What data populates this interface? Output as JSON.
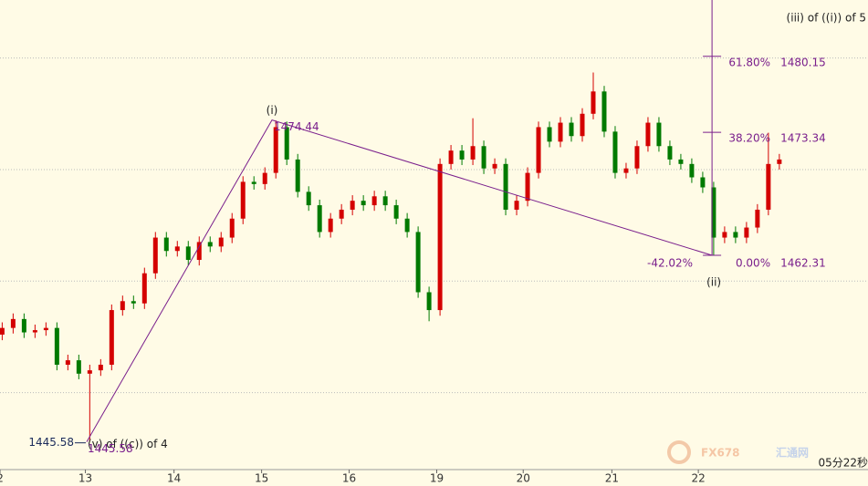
{
  "chart_data": {
    "type": "candlestick",
    "open": [
      1455.2,
      1455.8,
      1456.6,
      1455.4,
      1455.6,
      1455.8,
      1452.5,
      1452.9,
      1451.7,
      1452.0,
      1452.5,
      1457.4,
      1458.2,
      1458.0,
      1460.7,
      1463.9,
      1462.7,
      1463.1,
      1461.9,
      1463.5,
      1463.1,
      1463.9,
      1465.6,
      1468.9,
      1468.7,
      1469.7,
      1473.8,
      1470.9,
      1468.0,
      1466.8,
      1464.4,
      1465.6,
      1466.4,
      1467.2,
      1466.8,
      1467.6,
      1466.8,
      1465.6,
      1464.4,
      1459.0,
      1457.4,
      1470.5,
      1471.7,
      1470.9,
      1472.1,
      1470.1,
      1470.5,
      1466.4,
      1467.2,
      1469.7,
      1473.8,
      1472.5,
      1474.2,
      1473.0,
      1475.0,
      1477.0,
      1473.4,
      1469.7,
      1470.1,
      1472.1,
      1474.2,
      1472.1,
      1470.9,
      1470.5,
      1469.3,
      1468.4,
      1463.9,
      1464.4,
      1463.9,
      1464.8,
      1466.4,
      1470.5
    ],
    "high": [
      1456.3,
      1457.1,
      1457.1,
      1456.1,
      1456.3,
      1456.3,
      1453.4,
      1453.4,
      1452.5,
      1453.0,
      1457.9,
      1458.7,
      1458.7,
      1461.2,
      1464.4,
      1464.4,
      1463.6,
      1463.6,
      1464.0,
      1464.0,
      1464.4,
      1466.1,
      1469.4,
      1469.4,
      1470.2,
      1474.4,
      1474.3,
      1471.4,
      1468.5,
      1467.3,
      1466.1,
      1466.9,
      1467.7,
      1467.7,
      1468.1,
      1468.1,
      1467.3,
      1466.1,
      1464.9,
      1459.5,
      1471.0,
      1472.2,
      1472.2,
      1474.6,
      1472.6,
      1471.0,
      1471.0,
      1467.7,
      1470.2,
      1474.3,
      1474.3,
      1474.7,
      1474.7,
      1475.5,
      1478.7,
      1477.5,
      1473.9,
      1470.6,
      1472.6,
      1474.7,
      1474.7,
      1472.6,
      1471.4,
      1471.0,
      1469.8,
      1468.9,
      1464.9,
      1464.9,
      1465.3,
      1466.9,
      1473.3,
      1471.4
    ],
    "low": [
      1454.7,
      1455.3,
      1454.9,
      1454.9,
      1455.1,
      1452.0,
      1452.0,
      1451.2,
      1445.6,
      1451.5,
      1452.0,
      1456.9,
      1457.5,
      1457.5,
      1460.2,
      1462.2,
      1462.2,
      1461.4,
      1461.4,
      1462.6,
      1462.6,
      1463.4,
      1465.1,
      1468.2,
      1468.2,
      1469.2,
      1470.4,
      1467.5,
      1466.3,
      1463.9,
      1463.9,
      1465.1,
      1465.9,
      1466.3,
      1466.3,
      1466.3,
      1465.1,
      1463.9,
      1458.5,
      1456.4,
      1456.9,
      1470.0,
      1470.4,
      1470.4,
      1469.6,
      1469.6,
      1465.9,
      1465.9,
      1466.7,
      1469.2,
      1472.0,
      1472.0,
      1472.5,
      1472.5,
      1474.5,
      1472.9,
      1469.2,
      1469.2,
      1469.6,
      1471.6,
      1471.6,
      1470.4,
      1470.0,
      1468.8,
      1467.9,
      1462.3,
      1463.4,
      1463.4,
      1463.4,
      1464.3,
      1465.9,
      1470.0
    ],
    "close": [
      1455.8,
      1456.6,
      1455.4,
      1455.6,
      1455.8,
      1452.5,
      1452.9,
      1451.7,
      1452.0,
      1452.5,
      1457.4,
      1458.2,
      1458.0,
      1460.7,
      1463.9,
      1462.7,
      1463.1,
      1461.9,
      1463.5,
      1463.1,
      1463.9,
      1465.6,
      1468.9,
      1468.7,
      1469.7,
      1473.8,
      1470.9,
      1468.0,
      1466.8,
      1464.4,
      1465.6,
      1466.4,
      1467.2,
      1466.8,
      1467.6,
      1466.8,
      1465.6,
      1464.4,
      1459.0,
      1457.4,
      1470.5,
      1471.7,
      1470.9,
      1472.1,
      1470.1,
      1470.5,
      1466.4,
      1467.2,
      1469.7,
      1473.8,
      1472.5,
      1474.2,
      1473.0,
      1475.0,
      1477.0,
      1473.4,
      1469.7,
      1470.1,
      1472.1,
      1474.2,
      1472.1,
      1470.9,
      1470.5,
      1469.3,
      1468.4,
      1463.9,
      1464.4,
      1463.9,
      1464.8,
      1466.4,
      1470.5,
      1470.9
    ],
    "up_color": "#d40000",
    "down_color": "#007a00",
    "xlim": [
      -0.2,
      79.1
    ],
    "ylim": [
      1443.1,
      1485.2
    ],
    "xticks": [
      {
        "value": -0.2,
        "label": "2"
      },
      {
        "value": 7.6,
        "label": "13"
      },
      {
        "value": 15.7,
        "label": "14"
      },
      {
        "value": 23.7,
        "label": "15"
      },
      {
        "value": 31.7,
        "label": "16"
      },
      {
        "value": 39.7,
        "label": "19"
      },
      {
        "value": 47.6,
        "label": "20"
      },
      {
        "value": 55.7,
        "label": "21"
      },
      {
        "value": 63.6,
        "label": "22"
      }
    ],
    "gridlines": [
      1450,
      1460,
      1470,
      1480
    ],
    "waves": {
      "color": "#7a1f8c",
      "points": [
        {
          "x": 7.72,
          "y": 1445.58,
          "label": "(v) of ((c)) of 4"
        },
        {
          "x": 24.65,
          "y": 1474.44,
          "label": "(i)"
        },
        {
          "x": 64.85,
          "y": 1462.31,
          "label": "(ii)"
        }
      ]
    },
    "fib": {
      "x": 64.85,
      "color": "#7a1f8c",
      "levels": [
        {
          "label": "61.80%",
          "value": 1480.15
        },
        {
          "label": "38.20%",
          "value": 1473.34
        },
        {
          "label": "0.00%",
          "value": 1462.31
        }
      ],
      "extension_label": "-42.02%"
    },
    "note": "(iii) of ((i)) of 5",
    "clock": "05分22秒",
    "watermark": [
      "FX678",
      "汇通网"
    ]
  }
}
